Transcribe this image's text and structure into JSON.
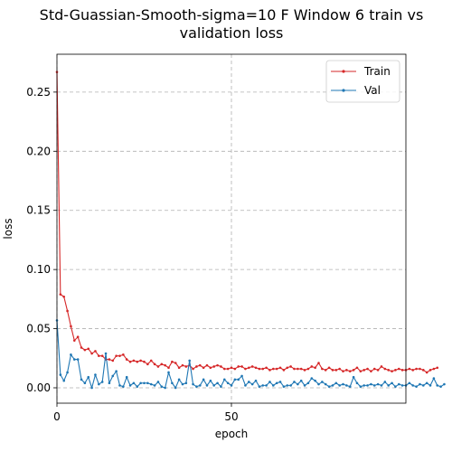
{
  "chart_data": {
    "type": "line",
    "title": "Std-Guassian-Smooth-sigma=10 F Window 6 train vs validation loss",
    "title_lines": [
      "Std-Guassian-Smooth-sigma=10 F Window 6 train vs",
      "validation loss"
    ],
    "xlabel": "epoch",
    "ylabel": "loss",
    "xlim": [
      0,
      100
    ],
    "ylim": [
      -0.013,
      0.282
    ],
    "x_ticks": [
      0,
      50
    ],
    "y_ticks": [
      0.0,
      0.05,
      0.1,
      0.15,
      0.2,
      0.25
    ],
    "y_tick_labels": [
      "0.00",
      "0.05",
      "0.10",
      "0.15",
      "0.20",
      "0.25"
    ],
    "grid": true,
    "legend_position": "top-right",
    "series": [
      {
        "name": "Train",
        "color": "#d62728",
        "values": [
          0.267,
          0.079,
          0.077,
          0.065,
          0.052,
          0.04,
          0.043,
          0.034,
          0.032,
          0.033,
          0.029,
          0.031,
          0.027,
          0.027,
          0.024,
          0.024,
          0.023,
          0.027,
          0.027,
          0.028,
          0.024,
          0.022,
          0.023,
          0.022,
          0.023,
          0.022,
          0.02,
          0.023,
          0.02,
          0.018,
          0.02,
          0.019,
          0.017,
          0.022,
          0.021,
          0.017,
          0.019,
          0.018,
          0.019,
          0.016,
          0.018,
          0.019,
          0.017,
          0.019,
          0.017,
          0.018,
          0.019,
          0.018,
          0.016,
          0.016,
          0.017,
          0.016,
          0.018,
          0.018,
          0.016,
          0.017,
          0.018,
          0.017,
          0.016,
          0.016,
          0.017,
          0.015,
          0.016,
          0.016,
          0.017,
          0.015,
          0.017,
          0.018,
          0.016,
          0.016,
          0.016,
          0.015,
          0.016,
          0.018,
          0.017,
          0.021,
          0.016,
          0.015,
          0.017,
          0.015,
          0.015,
          0.016,
          0.014,
          0.015,
          0.014,
          0.015,
          0.017,
          0.014,
          0.015,
          0.016,
          0.014,
          0.016,
          0.015,
          0.018,
          0.016,
          0.015,
          0.014,
          0.015,
          0.016,
          0.015,
          0.015,
          0.016,
          0.015,
          0.016,
          0.016,
          0.015,
          0.013,
          0.015,
          0.016,
          0.017
        ]
      },
      {
        "name": "Val",
        "color": "#1f77b4",
        "values": [
          0.057,
          0.011,
          0.006,
          0.013,
          0.028,
          0.024,
          0.024,
          0.007,
          0.004,
          0.009,
          0.0,
          0.011,
          0.003,
          0.005,
          0.029,
          0.004,
          0.01,
          0.014,
          0.002,
          0.001,
          0.009,
          0.002,
          0.004,
          0.001,
          0.004,
          0.004,
          0.004,
          0.003,
          0.002,
          0.005,
          0.001,
          0.0,
          0.013,
          0.004,
          0.0,
          0.007,
          0.003,
          0.004,
          0.023,
          0.003,
          0.001,
          0.002,
          0.007,
          0.002,
          0.006,
          0.002,
          0.004,
          0.001,
          0.007,
          0.004,
          0.002,
          0.007,
          0.007,
          0.01,
          0.002,
          0.005,
          0.003,
          0.006,
          0.001,
          0.002,
          0.002,
          0.005,
          0.002,
          0.004,
          0.005,
          0.001,
          0.002,
          0.002,
          0.005,
          0.003,
          0.006,
          0.002,
          0.004,
          0.008,
          0.006,
          0.003,
          0.005,
          0.003,
          0.001,
          0.002,
          0.004,
          0.002,
          0.003,
          0.002,
          0.001,
          0.009,
          0.004,
          0.001,
          0.002,
          0.002,
          0.003,
          0.002,
          0.003,
          0.002,
          0.005,
          0.002,
          0.004,
          0.001,
          0.003,
          0.002,
          0.002,
          0.004,
          0.002,
          0.001,
          0.003,
          0.002,
          0.004,
          0.002,
          0.008,
          0.002,
          0.001,
          0.003
        ]
      }
    ]
  }
}
